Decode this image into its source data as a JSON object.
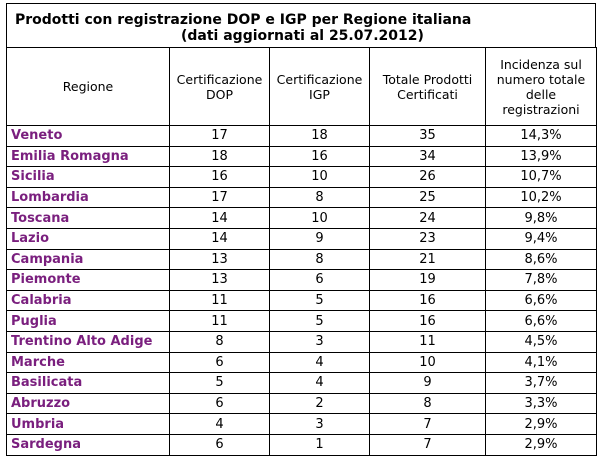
{
  "title": {
    "line1": "Prodotti con registrazione DOP e IGP per Regione italiana",
    "line2": "(dati aggiornati al 25.07.2012)"
  },
  "columns": [
    "Regione",
    "Certificazione DOP",
    "Certificazione IGP",
    "Totale Prodotti Certificati",
    "Incidenza sul numero totale delle registrazioni"
  ],
  "rows": [
    [
      "Veneto",
      "17",
      "18",
      "35",
      "14,3%"
    ],
    [
      "Emilia Romagna",
      "18",
      "16",
      "34",
      "13,9%"
    ],
    [
      "Sicilia",
      "16",
      "10",
      "26",
      "10,7%"
    ],
    [
      "Lombardia",
      "17",
      "8",
      "25",
      "10,2%"
    ],
    [
      "Toscana",
      "14",
      "10",
      "24",
      "9,8%"
    ],
    [
      "Lazio",
      "14",
      "9",
      "23",
      "9,4%"
    ],
    [
      "Campania",
      "13",
      "8",
      "21",
      "8,6%"
    ],
    [
      "Piemonte",
      "13",
      "6",
      "19",
      "7,8%"
    ],
    [
      "Calabria",
      "11",
      "5",
      "16",
      "6,6%"
    ],
    [
      "Puglia",
      "11",
      "5",
      "16",
      "6,6%"
    ],
    [
      "Trentino Alto Adige",
      "8",
      "3",
      "11",
      "4,5%"
    ],
    [
      "Marche",
      "6",
      "4",
      "10",
      "4,1%"
    ],
    [
      "Basilicata",
      "5",
      "4",
      "9",
      "3,7%"
    ],
    [
      "Abruzzo",
      "6",
      "2",
      "8",
      "3,3%"
    ],
    [
      "Umbria",
      "4",
      "3",
      "7",
      "2,9%"
    ],
    [
      "Sardegna",
      "6",
      "1",
      "7",
      "2,9%"
    ]
  ],
  "colors": {
    "region_text": "#7a1f7e"
  }
}
